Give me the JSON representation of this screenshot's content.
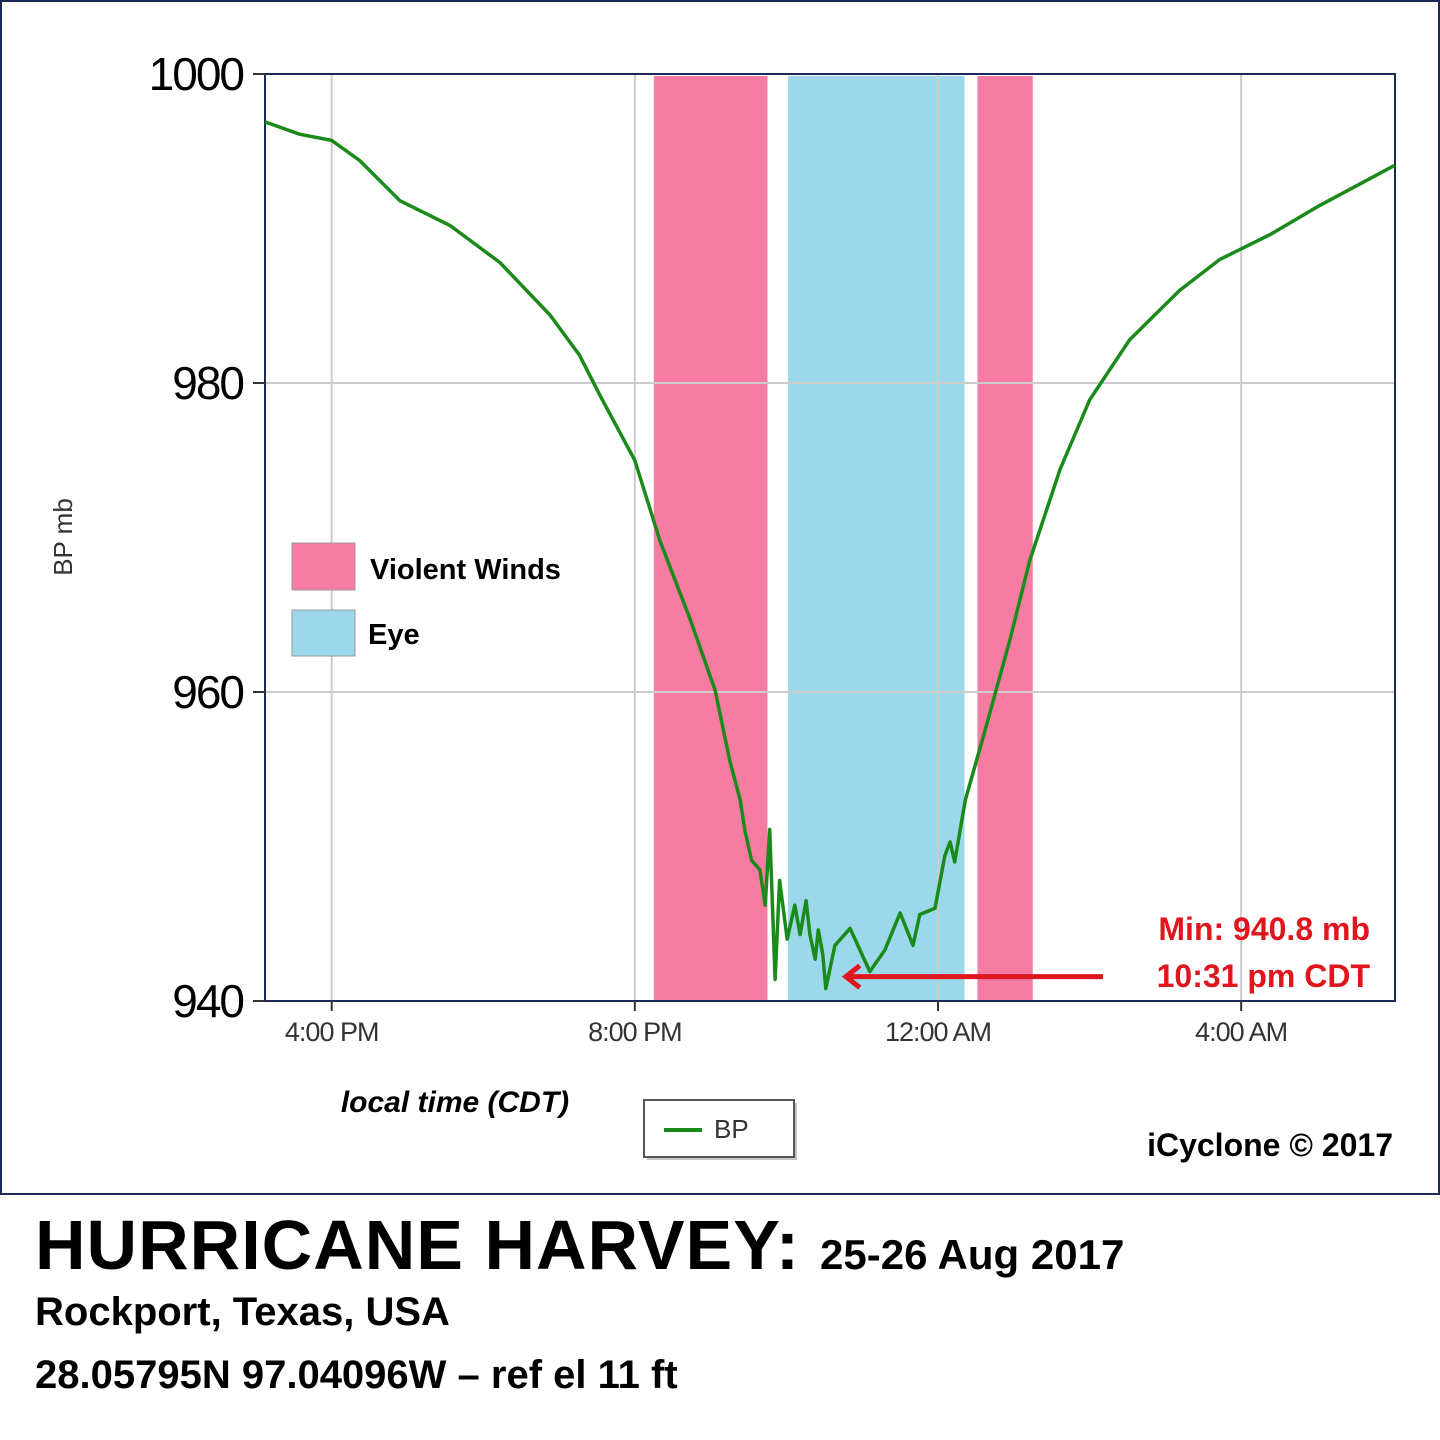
{
  "chart_data": {
    "type": "line",
    "title": "HURRICANE HARVEY:",
    "subtitle": "25-26 Aug 2017",
    "location": "Rockport, Texas, USA",
    "coordinates": "28.05795N 97.04096W – ref el 11 ft",
    "xlabel": "local time (CDT)",
    "ylabel": "BP mb",
    "x_units": "hours after 4:00 PM CDT 25 Aug",
    "xlim": [
      -0.88,
      14.03
    ],
    "ylim": [
      940,
      1000
    ],
    "yticks": [
      940,
      960,
      980,
      1000
    ],
    "xticks": [
      {
        "value": 0,
        "label": "4:00 PM"
      },
      {
        "value": 4,
        "label": "8:00 PM"
      },
      {
        "value": 8,
        "label": "12:00 AM"
      },
      {
        "value": 12,
        "label": "4:00 AM"
      }
    ],
    "grid": true,
    "series": [
      {
        "name": "BP",
        "color": "#1a8a1a",
        "points": [
          [
            -0.88,
            996.9
          ],
          [
            -0.42,
            996.1
          ],
          [
            0,
            995.7
          ],
          [
            0.37,
            994.4
          ],
          [
            0.9,
            991.8
          ],
          [
            1.56,
            990.2
          ],
          [
            2.22,
            987.8
          ],
          [
            2.88,
            984.4
          ],
          [
            3.27,
            981.8
          ],
          [
            3.54,
            979.2
          ],
          [
            4.0,
            975.0
          ],
          [
            4.33,
            969.8
          ],
          [
            4.73,
            964.7
          ],
          [
            5.06,
            960.1
          ],
          [
            5.25,
            955.6
          ],
          [
            5.39,
            953.0
          ],
          [
            5.45,
            951.1
          ],
          [
            5.54,
            949.1
          ],
          [
            5.65,
            948.5
          ],
          [
            5.72,
            946.2
          ],
          [
            5.78,
            951.1
          ],
          [
            5.85,
            941.4
          ],
          [
            5.91,
            947.8
          ],
          [
            6.01,
            944.0
          ],
          [
            6.11,
            946.2
          ],
          [
            6.18,
            944.3
          ],
          [
            6.26,
            946.5
          ],
          [
            6.31,
            944.3
          ],
          [
            6.38,
            942.7
          ],
          [
            6.42,
            944.6
          ],
          [
            6.48,
            943.0
          ],
          [
            6.52,
            940.8
          ],
          [
            6.64,
            943.6
          ],
          [
            6.84,
            944.7
          ],
          [
            7.1,
            941.9
          ],
          [
            7.3,
            943.3
          ],
          [
            7.5,
            945.7
          ],
          [
            7.67,
            943.6
          ],
          [
            7.76,
            945.6
          ],
          [
            7.96,
            946.0
          ],
          [
            8.09,
            949.4
          ],
          [
            8.16,
            950.3
          ],
          [
            8.22,
            949.0
          ],
          [
            8.36,
            953.0
          ],
          [
            8.62,
            957.5
          ],
          [
            8.95,
            963.4
          ],
          [
            9.21,
            968.5
          ],
          [
            9.61,
            974.4
          ],
          [
            10.0,
            978.9
          ],
          [
            10.53,
            982.8
          ],
          [
            11.19,
            986.0
          ],
          [
            11.72,
            988.0
          ],
          [
            12.38,
            989.6
          ],
          [
            13.04,
            991.5
          ],
          [
            14.03,
            994.1
          ]
        ]
      }
    ],
    "bands": [
      {
        "name": "Violent Winds",
        "start": 4.25,
        "end": 5.75,
        "color": "#f77ca4"
      },
      {
        "name": "Eye",
        "start": 6.02,
        "end": 8.35,
        "color": "#9dd8ea"
      },
      {
        "name": "Violent Winds",
        "start": 8.52,
        "end": 9.25,
        "color": "#f77ca4"
      }
    ],
    "band_legend": [
      {
        "label": "Violent Winds",
        "color": "#f77ca4"
      },
      {
        "label": "Eye",
        "color": "#9dd8ea"
      }
    ],
    "legend": {
      "label": "BP",
      "placement": "bottom-center"
    },
    "annotation": {
      "line1": "Min: 940.8 mb",
      "line2": "10:31 pm CDT",
      "x": 6.52,
      "y": 940.8,
      "color": "#e0161e"
    },
    "credit": "iCyclone © 2017"
  }
}
